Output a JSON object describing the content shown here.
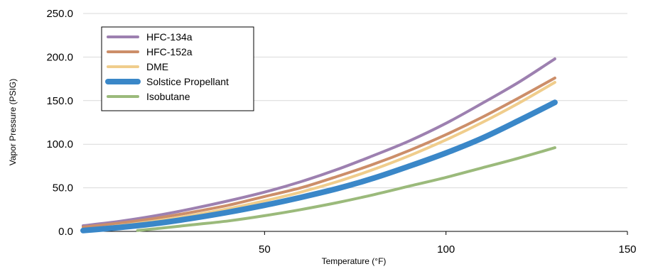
{
  "chart_data": {
    "type": "line",
    "xlabel": "Temperature (°F)",
    "ylabel": "Vapor Pressure (PSIG)",
    "xlim": [
      0,
      150
    ],
    "ylim": [
      0,
      250
    ],
    "x_ticks": [
      "50",
      "100",
      "150"
    ],
    "y_ticks": [
      "0.0",
      "50.0",
      "100.0",
      "150.0",
      "200.0",
      "250.0"
    ],
    "grid": "horizontal",
    "legend_position": "top-left",
    "series": [
      {
        "name": "HFC-134a",
        "color": "#9d80b0",
        "x": [
          0,
          10,
          20,
          30,
          40,
          50,
          60,
          70,
          80,
          90,
          100,
          110,
          120,
          130
        ],
        "y": [
          6.5,
          11.5,
          18,
          26,
          35,
          45,
          57,
          71,
          87,
          104,
          124,
          147,
          171,
          198
        ]
      },
      {
        "name": "HFC-152a",
        "color": "#cc8e69",
        "x": [
          0,
          10,
          20,
          30,
          40,
          50,
          60,
          70,
          80,
          90,
          100,
          110,
          120,
          130
        ],
        "y": [
          5,
          9.5,
          15,
          22,
          30,
          40,
          50,
          63,
          77,
          93,
          111,
          131,
          153,
          176
        ]
      },
      {
        "name": "DME",
        "color": "#f0cd8c",
        "x": [
          0,
          10,
          20,
          30,
          40,
          50,
          60,
          70,
          80,
          90,
          100,
          110,
          120,
          130
        ],
        "y": [
          2,
          6.5,
          12,
          18.5,
          26,
          35,
          45,
          57,
          71,
          87,
          105,
          125,
          147,
          171
        ]
      },
      {
        "name": "Solstice Propellant",
        "color": "#3a87c8",
        "x": [
          0,
          10,
          20,
          30,
          40,
          50,
          60,
          70,
          80,
          90,
          100,
          110,
          120,
          130
        ],
        "y": [
          1,
          4.5,
          9,
          15,
          22,
          30,
          39,
          49,
          61,
          75,
          90,
          107,
          127,
          148
        ]
      },
      {
        "name": "Isobutane",
        "color": "#9bba7b",
        "x": [
          15,
          20,
          30,
          40,
          50,
          60,
          70,
          80,
          90,
          100,
          110,
          120,
          130
        ],
        "y": [
          1,
          3,
          7.5,
          12,
          18,
          25,
          33,
          42,
          52,
          62,
          73,
          84,
          96
        ]
      }
    ]
  }
}
